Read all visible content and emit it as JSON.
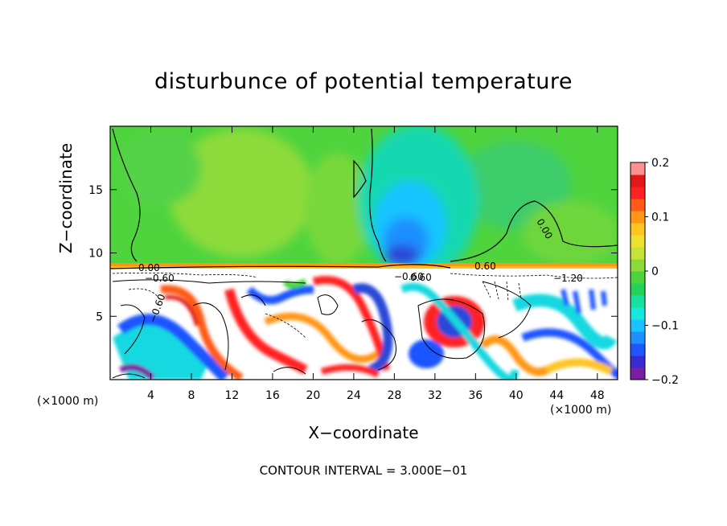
{
  "chart_data": {
    "type": "heatmap",
    "title": "disturbunce of potential temperature",
    "xlabel": "X−coordinate",
    "ylabel": "Z−coordinate",
    "x_unit": "(×1000 m)",
    "y_unit": "(×1000 m)",
    "footer": "CONTOUR INTERVAL = 3.000E−01",
    "xlim": [
      0,
      50
    ],
    "ylim": [
      0,
      20
    ],
    "x_ticks": [
      "4",
      "8",
      "12",
      "16",
      "20",
      "24",
      "28",
      "32",
      "36",
      "40",
      "44",
      "48"
    ],
    "y_ticks": [
      "5",
      "10",
      "15"
    ],
    "colorbar": {
      "range": [
        -0.2,
        0.2
      ],
      "tick_labels": [
        "0.2",
        "0.1",
        "0",
        "−0.1",
        "−0.2"
      ],
      "tick_values": [
        0.2,
        0.1,
        0,
        -0.1,
        -0.2
      ],
      "colors": [
        "#7a1fa2",
        "#3a2bd0",
        "#1f55ff",
        "#1f8fff",
        "#18c4ff",
        "#19e6e0",
        "#19e0a0",
        "#22d25a",
        "#4cd43a",
        "#8ada3a",
        "#c8e23a",
        "#f0e030",
        "#ffc420",
        "#ff9618",
        "#ff5a18",
        "#ff2222",
        "#e01818",
        "#ff9090"
      ]
    },
    "contour_labels": [
      "0.00",
      "0.00",
      "−0.60",
      "−0.60",
      "0.60",
      "−0.60",
      "0.60",
      "−1.20",
      "−0.00"
    ],
    "field_summary": {
      "upper_region": "near 0 (green), z 9–20",
      "cool_plume": "negative around x 28–34, z 8–15",
      "lower_region": "alternating positive/negative eddies below z 9"
    }
  }
}
